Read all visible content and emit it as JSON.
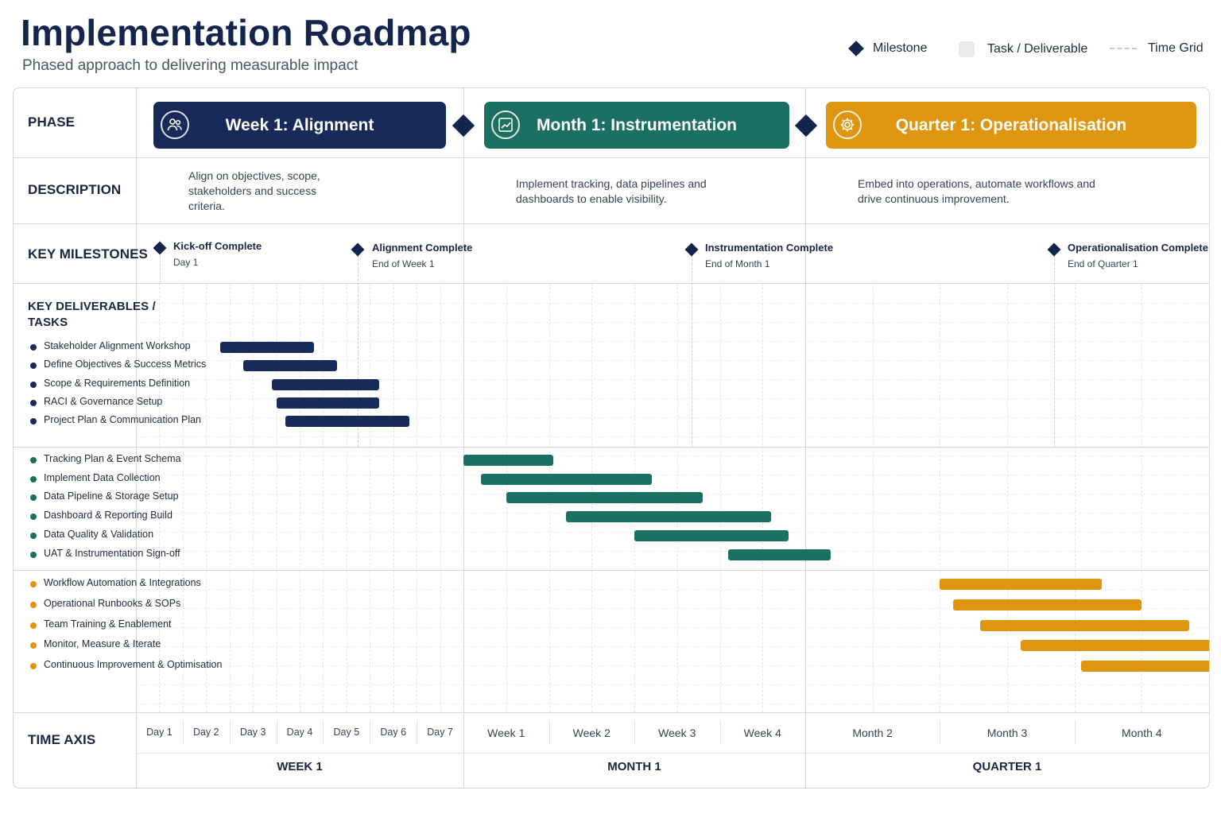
{
  "header": {
    "title": "Implementation Roadmap",
    "subtitle": "Phased approach to delivering measurable impact"
  },
  "legend": {
    "milestone": "Milestone",
    "task": "Task / Deliverable",
    "grid": "Time Grid"
  },
  "row_labels": {
    "phase": "PHASE",
    "description": "DESCRIPTION",
    "milestones": "KEY MILESTONES",
    "deliverables_1": "KEY DELIVERABLES /",
    "deliverables_2": "TASKS",
    "time_axis": "TIME AXIS"
  },
  "colors": {
    "navy": "#172a5a",
    "teal": "#1c6f63",
    "orange": "#e0950f",
    "diamond": "#14254d"
  },
  "phases": [
    {
      "name": "Week 1: Alignment",
      "icon": "people-icon",
      "color": "#172a5a",
      "description": "Align on objectives, scope, stakeholders and success criteria."
    },
    {
      "name": "Month 1: Instrumentation",
      "icon": "chart-icon",
      "color": "#1c6f63",
      "description": "Implement tracking, data pipelines and dashboards to enable visibility."
    },
    {
      "name": "Quarter 1: Operationalisation",
      "icon": "gear-icon",
      "color": "#e0950f",
      "description": "Embed into operations, automate workflows and drive continuous improvement."
    }
  ],
  "milestones": [
    {
      "title": "Kick-off Complete",
      "sub": "Day 1"
    },
    {
      "title": "Alignment Complete",
      "sub": "End of Week 1"
    },
    {
      "title": "Instrumentation Complete",
      "sub": "End of Month 1"
    },
    {
      "title": "Operationalisation Complete",
      "sub": "End of Quarter 1"
    }
  ],
  "task_groups": [
    {
      "phase": 0,
      "tasks": [
        {
          "name": "Stakeholder Alignment Workshop",
          "start": 1.8,
          "end": 3.8
        },
        {
          "name": "Define Objectives & Success Metrics",
          "start": 2.3,
          "end": 4.3
        },
        {
          "name": "Scope & Requirements Definition",
          "start": 2.9,
          "end": 5.2
        },
        {
          "name": "RACI & Governance Setup",
          "start": 3.0,
          "end": 5.2
        },
        {
          "name": "Project Plan & Communication Plan",
          "start": 3.2,
          "end": 5.85
        }
      ]
    },
    {
      "phase": 1,
      "tasks": [
        {
          "name": "Tracking Plan & Event Schema",
          "start": 0.0,
          "end": 1.05
        },
        {
          "name": "Implement Data Collection",
          "start": 0.2,
          "end": 2.2
        },
        {
          "name": "Data Pipeline & Storage Setup",
          "start": 0.5,
          "end": 2.8
        },
        {
          "name": "Dashboard & Reporting Build",
          "start": 1.2,
          "end": 3.6
        },
        {
          "name": "Data Quality & Validation",
          "start": 2.0,
          "end": 3.8
        },
        {
          "name": "UAT & Instrumentation Sign-off",
          "start": 3.1,
          "end": 4.3
        }
      ]
    },
    {
      "phase": 2,
      "tasks": [
        {
          "name": "Workflow Automation & Integrations",
          "start": 1.0,
          "end": 2.2
        },
        {
          "name": "Operational Runbooks & SOPs",
          "start": 1.1,
          "end": 2.5
        },
        {
          "name": "Team Training & Enablement",
          "start": 1.3,
          "end": 2.85
        },
        {
          "name": "Monitor, Measure & Iterate",
          "start": 1.6,
          "end": 3.35
        },
        {
          "name": "Continuous Improvement & Optimisation",
          "start": 2.05,
          "end": 4.1
        }
      ]
    }
  ],
  "time_axis": {
    "days": [
      "Day 1",
      "Day 2",
      "Day 3",
      "Day 4",
      "Day 5",
      "Day 6",
      "Day 7"
    ],
    "weeks": [
      "Week 1",
      "Week 2",
      "Week 3",
      "Week 4"
    ],
    "months": [
      "Month 2",
      "Month 3",
      "Month 4"
    ],
    "scales": [
      "WEEK 1",
      "MONTH 1",
      "QUARTER 1"
    ]
  }
}
